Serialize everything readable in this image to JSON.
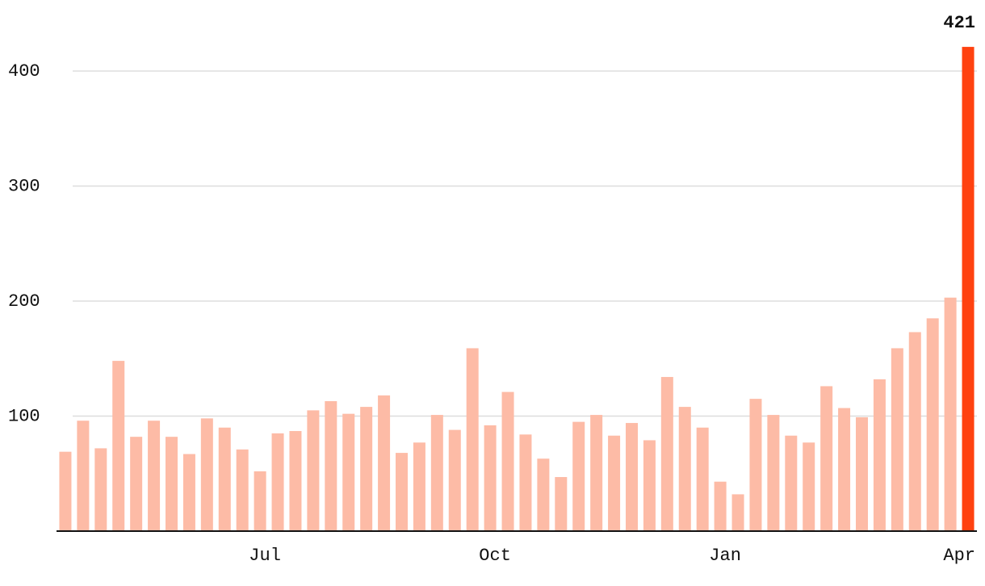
{
  "chart_data": {
    "type": "bar",
    "categories": [
      null,
      null,
      null,
      null,
      null,
      null,
      null,
      null,
      null,
      null,
      null,
      "Jul",
      null,
      null,
      null,
      null,
      null,
      null,
      null,
      null,
      null,
      null,
      null,
      null,
      "Oct",
      null,
      null,
      null,
      null,
      null,
      null,
      null,
      null,
      null,
      null,
      null,
      null,
      "Jan",
      null,
      null,
      null,
      null,
      null,
      null,
      null,
      null,
      null,
      null,
      null,
      null,
      null,
      "Apr"
    ],
    "values": [
      69,
      96,
      72,
      148,
      82,
      96,
      82,
      67,
      98,
      90,
      71,
      52,
      85,
      87,
      105,
      113,
      102,
      108,
      118,
      68,
      77,
      101,
      88,
      159,
      92,
      121,
      84,
      63,
      47,
      95,
      101,
      83,
      94,
      79,
      134,
      108,
      90,
      43,
      32,
      115,
      101,
      83,
      77,
      126,
      107,
      99,
      132,
      159,
      173,
      185,
      203,
      421
    ],
    "colors": [
      "#fdbba6",
      "#fdbba6",
      "#fdbba6",
      "#fdbba6",
      "#fdbba6",
      "#fdbba6",
      "#fdbba6",
      "#fdbba6",
      "#fdbba6",
      "#fdbba6",
      "#fdbba6",
      "#fdbba6",
      "#fdbba6",
      "#fdbba6",
      "#fdbba6",
      "#fdbba6",
      "#fdbba6",
      "#fdbba6",
      "#fdbba6",
      "#fdbba6",
      "#fdbba6",
      "#fdbba6",
      "#fdbba6",
      "#fdbba6",
      "#fdbba6",
      "#fdbba6",
      "#fdbba6",
      "#fdbba6",
      "#fdbba6",
      "#fdbba6",
      "#fdbba6",
      "#fdbba6",
      "#fdbba6",
      "#fdbba6",
      "#fdbba6",
      "#fdbba6",
      "#fdbba6",
      "#fdbba6",
      "#fdbba6",
      "#fdbba6",
      "#fdbba6",
      "#fdbba6",
      "#fdbba6",
      "#fdbba6",
      "#fdbba6",
      "#fdbba6",
      "#fdbba6",
      "#fdbba6",
      "#fdbba6",
      "#fdbba6",
      "#fdbba6",
      "#ff4210"
    ],
    "labeled_index": 51,
    "ylim": [
      0,
      440
    ],
    "yticks": [
      100,
      200,
      300,
      400
    ],
    "grid": true
  }
}
